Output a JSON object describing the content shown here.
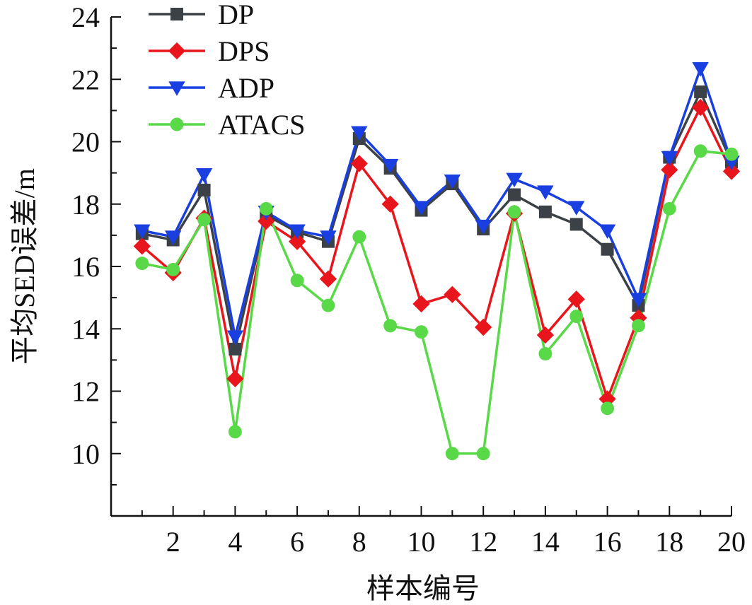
{
  "chart_data": {
    "type": "line",
    "title": "",
    "xlabel": "样本编号",
    "ylabel": "平均SED误差/m",
    "xlim": [
      0,
      20
    ],
    "ylim": [
      8,
      24
    ],
    "xticks": [
      2,
      4,
      6,
      8,
      10,
      12,
      14,
      16,
      18,
      20
    ],
    "yticks": [
      10,
      12,
      14,
      16,
      18,
      20,
      22,
      24
    ],
    "x": [
      1,
      2,
      3,
      4,
      5,
      6,
      7,
      8,
      9,
      10,
      11,
      12,
      13,
      14,
      15,
      16,
      17,
      18,
      19,
      20
    ],
    "legend_position": "top-left",
    "series": [
      {
        "name": "DP",
        "color": "#3c4148",
        "marker": "square",
        "values": [
          17.05,
          16.85,
          18.45,
          13.35,
          17.65,
          17.1,
          16.8,
          20.1,
          19.15,
          17.8,
          18.65,
          17.2,
          18.3,
          17.75,
          17.35,
          16.55,
          14.75,
          19.5,
          21.6,
          19.35
        ]
      },
      {
        "name": "DPS",
        "color": "#e8161c",
        "marker": "diamond",
        "values": [
          16.65,
          15.8,
          17.55,
          12.4,
          17.45,
          16.8,
          15.6,
          19.3,
          18.0,
          14.8,
          15.1,
          14.05,
          17.7,
          13.8,
          14.95,
          11.75,
          14.35,
          19.1,
          21.1,
          19.05
        ]
      },
      {
        "name": "ADP",
        "color": "#1a3fe0",
        "marker": "triangle-down",
        "values": [
          17.15,
          16.95,
          18.95,
          13.75,
          17.75,
          17.15,
          16.95,
          20.3,
          19.25,
          17.9,
          18.75,
          17.3,
          18.8,
          18.4,
          17.9,
          17.15,
          14.95,
          19.5,
          22.35,
          19.35
        ]
      },
      {
        "name": "ATACS",
        "color": "#59d948",
        "marker": "circle",
        "values": [
          16.1,
          15.9,
          17.5,
          10.7,
          17.85,
          15.55,
          14.75,
          16.95,
          14.1,
          13.9,
          10.0,
          10.0,
          17.75,
          13.2,
          14.4,
          11.45,
          14.1,
          17.85,
          19.7,
          19.6
        ]
      }
    ]
  }
}
